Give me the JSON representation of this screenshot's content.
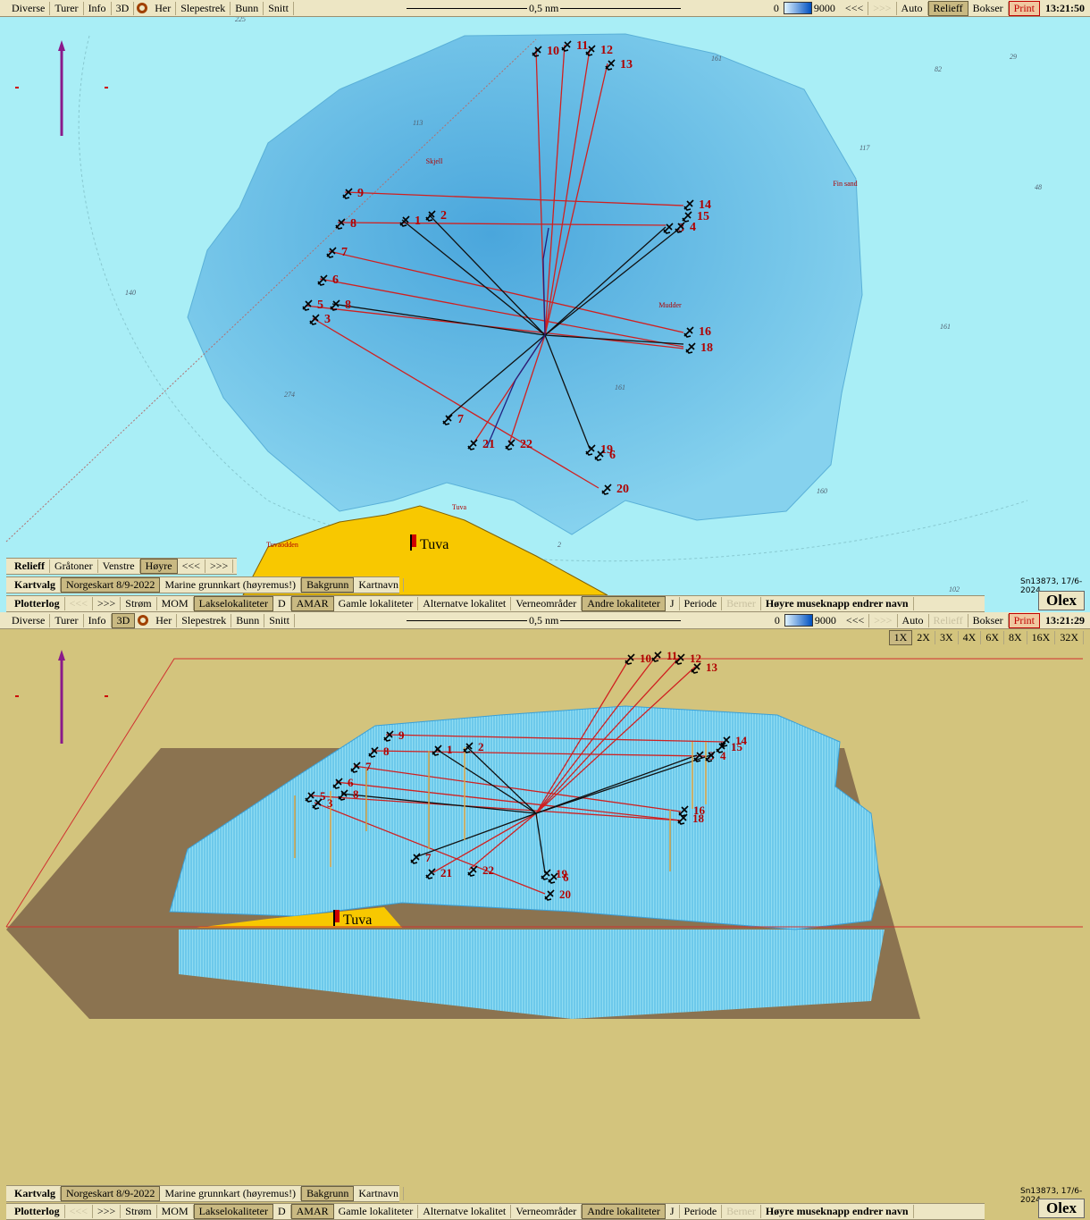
{
  "panels": [
    {
      "toolbar": {
        "left": [
          "Diverse",
          "Turer",
          "Info",
          "3D",
          "Her",
          "Slepestrek",
          "Bunn",
          "Snitt"
        ],
        "scale": "0,5 nm",
        "depth_min": "0",
        "depth_max": "9000",
        "right": [
          "<<<",
          ">>>",
          "Auto",
          "Relieff",
          "Bokser",
          "Print"
        ],
        "time": "13:21:50"
      },
      "map": {
        "anchor_labels": [
          "10",
          "11",
          "12",
          "13",
          "9",
          "1",
          "2",
          "14",
          "15",
          "3",
          "4",
          "8",
          "7",
          "6",
          "5",
          "8",
          "3",
          "16",
          "18",
          "7",
          "21",
          "22",
          "19",
          "6",
          "20"
        ],
        "places": [
          "Skjell",
          "Fin sand",
          "Mudder",
          "Tuva",
          "Tuvaodden"
        ],
        "depths": [
          "225",
          "161",
          "82",
          "29",
          "113",
          "117",
          "48",
          "140",
          "161",
          "161",
          "274",
          "160",
          "2",
          "102"
        ],
        "site": "Tuva"
      },
      "relief_bar": [
        "Relieff",
        "Gråtoner",
        "Venstre",
        "Høyre",
        "<<<",
        ">>>"
      ],
      "kartvalg": [
        "Kartvalg",
        "Norgeskart 8/9-2022",
        "Marine grunnkart (høyremus!)",
        "Bakgrunn",
        "Kartnavn"
      ],
      "plotterlog": [
        "Plotterlog",
        "<<<",
        ">>>",
        "Strøm",
        "MOM",
        "Lakselokaliteter",
        "D",
        "AMAR",
        "Gamle lokaliteter",
        "Alternatve lokalitet",
        "Verneområder",
        "Andre lokaliteter",
        "J",
        "Periode",
        "Berner",
        "Høyre museknapp endrer navn"
      ],
      "stamp": "Sn13873, 17/6-2024",
      "logo": "Olex"
    },
    {
      "toolbar": {
        "left": [
          "Diverse",
          "Turer",
          "Info",
          "3D",
          "Her",
          "Slepestrek",
          "Bunn",
          "Snitt"
        ],
        "scale": "0,5 nm",
        "depth_min": "0",
        "depth_max": "9000",
        "right": [
          "<<<",
          ">>>",
          "Auto",
          "Relieff",
          "Bokser",
          "Print"
        ],
        "time": "13:21:29"
      },
      "zoom": [
        "1X",
        "2X",
        "3X",
        "4X",
        "6X",
        "8X",
        "16X",
        "32X"
      ],
      "map": {
        "anchor_labels": [
          "10",
          "11",
          "12",
          "13",
          "9",
          "1",
          "2",
          "14",
          "15",
          "3",
          "4",
          "8",
          "7",
          "6",
          "5",
          "8",
          "3",
          "16",
          "18",
          "7",
          "21",
          "22",
          "19",
          "6",
          "20"
        ],
        "site": "Tuva"
      },
      "kartvalg": [
        "Kartvalg",
        "Norgeskart 8/9-2022",
        "Marine grunnkart (høyremus!)",
        "Bakgrunn",
        "Kartnavn"
      ],
      "plotterlog": [
        "Plotterlog",
        "<<<",
        ">>>",
        "Strøm",
        "MOM",
        "Lakselokaliteter",
        "D",
        "AMAR",
        "Gamle lokaliteter",
        "Alternatve lokalitet",
        "Verneområder",
        "Andre lokaliteter",
        "J",
        "Periode",
        "Berner",
        "Høyre museknapp endrer navn"
      ],
      "stamp": "Sn13873, 17/6-2024",
      "logo": "Olex"
    }
  ]
}
